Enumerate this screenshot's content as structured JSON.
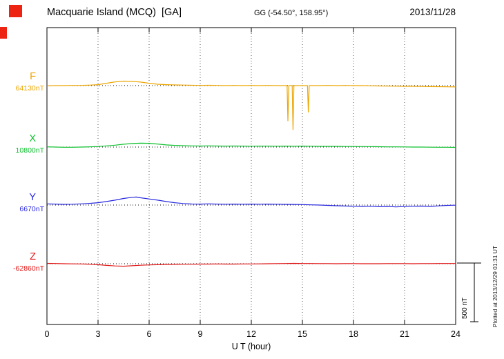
{
  "header": {
    "title": "Macquarie Island (MCQ)  [GA]",
    "coords": "GG (-54.50°, 158.95°)",
    "date": "2013/11/28"
  },
  "xaxis": {
    "label": "U T (hour)",
    "ticks": [
      "0",
      "3",
      "6",
      "9",
      "12",
      "15",
      "18",
      "21",
      "24"
    ]
  },
  "scale_bar": {
    "label": "500 nT"
  },
  "footer_note": "Plotted at 2013/12/29 01:31 UT",
  "components": [
    {
      "id": "F",
      "label": "F",
      "value_label": "64130nT"
    },
    {
      "id": "X",
      "label": "X",
      "value_label": "10800nT"
    },
    {
      "id": "Y",
      "label": "Y",
      "value_label": "6670nT"
    },
    {
      "id": "Z",
      "label": "Z",
      "value_label": "-62860nT"
    }
  ],
  "chart_data": {
    "type": "line",
    "title": "Macquarie Island (MCQ) [GA] magnetogram 2013/11/28",
    "xlabel": "U T (hour)",
    "x_range": [
      0,
      24
    ],
    "x_ticks": [
      0,
      3,
      6,
      9,
      12,
      15,
      18,
      21,
      24
    ],
    "grid": "vertical-dotted",
    "scale_bar_nT": 500,
    "offset_units": "nT relative to baseline",
    "series": [
      {
        "name": "F",
        "baseline_nT": 64130,
        "color": "#eda600",
        "points": [
          [
            0,
            -2
          ],
          [
            0.5,
            0
          ],
          [
            1,
            0
          ],
          [
            1.5,
            2
          ],
          [
            2,
            2
          ],
          [
            2.5,
            4
          ],
          [
            3,
            8
          ],
          [
            3.5,
            20
          ],
          [
            4,
            32
          ],
          [
            4.5,
            38
          ],
          [
            5,
            36
          ],
          [
            5.5,
            30
          ],
          [
            6,
            20
          ],
          [
            6.5,
            12
          ],
          [
            7,
            8
          ],
          [
            7.5,
            6
          ],
          [
            8,
            5
          ],
          [
            8.5,
            3
          ],
          [
            9,
            2
          ],
          [
            9.5,
            3
          ],
          [
            10,
            2
          ],
          [
            10.5,
            0
          ],
          [
            11,
            2
          ],
          [
            11.5,
            0
          ],
          [
            12,
            2
          ],
          [
            12.5,
            0
          ],
          [
            13,
            2
          ],
          [
            13.5,
            0
          ],
          [
            14,
            0
          ],
          [
            14.1,
            0
          ],
          [
            14.15,
            -300
          ],
          [
            14.2,
            0
          ],
          [
            14.4,
            0
          ],
          [
            14.45,
            -375
          ],
          [
            14.5,
            0
          ],
          [
            15,
            0
          ],
          [
            15.3,
            0
          ],
          [
            15.35,
            -225
          ],
          [
            15.4,
            0
          ],
          [
            16,
            0
          ],
          [
            16.5,
            2
          ],
          [
            17,
            0
          ],
          [
            17.5,
            2
          ],
          [
            18,
            0
          ],
          [
            18.5,
            0
          ],
          [
            19,
            -2
          ],
          [
            19.5,
            -3
          ],
          [
            20,
            -4
          ],
          [
            20.5,
            -5
          ],
          [
            21,
            -6
          ],
          [
            21.5,
            -6
          ],
          [
            22,
            -7
          ],
          [
            22.5,
            -8
          ],
          [
            23,
            -9
          ],
          [
            23.5,
            -10
          ],
          [
            24,
            -11
          ]
        ]
      },
      {
        "name": "X",
        "baseline_nT": 10800,
        "color": "#0cc02c",
        "points": [
          [
            0,
            2
          ],
          [
            0.5,
            0
          ],
          [
            1,
            -2
          ],
          [
            1.5,
            -2
          ],
          [
            2,
            0
          ],
          [
            2.5,
            2
          ],
          [
            3,
            5
          ],
          [
            3.5,
            10
          ],
          [
            4,
            16
          ],
          [
            4.5,
            24
          ],
          [
            5,
            30
          ],
          [
            5.5,
            33
          ],
          [
            6,
            32
          ],
          [
            6.5,
            26
          ],
          [
            7,
            18
          ],
          [
            7.5,
            14
          ],
          [
            8,
            12
          ],
          [
            8.5,
            10
          ],
          [
            9,
            9
          ],
          [
            9.5,
            10
          ],
          [
            10,
            9
          ],
          [
            10.5,
            8
          ],
          [
            11,
            9
          ],
          [
            11.5,
            8
          ],
          [
            12,
            7
          ],
          [
            12.5,
            8
          ],
          [
            13,
            8
          ],
          [
            13.5,
            7
          ],
          [
            14,
            8
          ],
          [
            14.5,
            7
          ],
          [
            15,
            8
          ],
          [
            15.5,
            7
          ],
          [
            16,
            6
          ],
          [
            16.5,
            6
          ],
          [
            17,
            6
          ],
          [
            17.5,
            5
          ],
          [
            18,
            5
          ],
          [
            18.5,
            4
          ],
          [
            19,
            4
          ],
          [
            19.5,
            3
          ],
          [
            20,
            2
          ],
          [
            20.5,
            2
          ],
          [
            21,
            1
          ],
          [
            21.5,
            0
          ],
          [
            22,
            0
          ],
          [
            22.5,
            -1
          ],
          [
            23,
            -2
          ],
          [
            23.5,
            -2
          ],
          [
            24,
            -3
          ]
        ]
      },
      {
        "name": "Y",
        "baseline_nT": 6670,
        "color": "#2727e0",
        "points": [
          [
            0,
            10
          ],
          [
            0.5,
            8
          ],
          [
            1,
            6
          ],
          [
            1.5,
            7
          ],
          [
            2,
            10
          ],
          [
            2.5,
            14
          ],
          [
            3,
            20
          ],
          [
            3.5,
            30
          ],
          [
            4,
            42
          ],
          [
            4.5,
            56
          ],
          [
            5,
            66
          ],
          [
            5.25,
            68
          ],
          [
            5.5,
            62
          ],
          [
            6,
            52
          ],
          [
            6.5,
            42
          ],
          [
            7,
            30
          ],
          [
            7.5,
            20
          ],
          [
            8,
            13
          ],
          [
            8.5,
            9
          ],
          [
            9,
            8
          ],
          [
            9.5,
            10
          ],
          [
            10,
            8
          ],
          [
            10.5,
            7
          ],
          [
            11,
            8
          ],
          [
            11.5,
            7
          ],
          [
            12,
            8
          ],
          [
            12.5,
            7
          ],
          [
            13,
            8
          ],
          [
            13.5,
            7
          ],
          [
            14,
            6
          ],
          [
            14.5,
            5
          ],
          [
            15,
            4
          ],
          [
            15.5,
            2
          ],
          [
            16,
            0
          ],
          [
            16.5,
            -3
          ],
          [
            17,
            -6
          ],
          [
            17.5,
            -8
          ],
          [
            18,
            -10
          ],
          [
            18.5,
            -12
          ],
          [
            19,
            -10
          ],
          [
            19.5,
            -14
          ],
          [
            20,
            -12
          ],
          [
            20.5,
            -16
          ],
          [
            21,
            -12
          ],
          [
            21.5,
            -10
          ],
          [
            22,
            -9
          ],
          [
            22.5,
            -12
          ],
          [
            23,
            -7
          ],
          [
            23.5,
            -3
          ],
          [
            24,
            -1
          ]
        ]
      },
      {
        "name": "Z",
        "baseline_nT": -62860,
        "color": "#e01414",
        "points": [
          [
            0,
            3
          ],
          [
            0.5,
            2
          ],
          [
            1,
            0
          ],
          [
            1.5,
            -1
          ],
          [
            2,
            -2
          ],
          [
            2.5,
            -4
          ],
          [
            3,
            -8
          ],
          [
            3.5,
            -14
          ],
          [
            4,
            -19
          ],
          [
            4.5,
            -21
          ],
          [
            5,
            -17
          ],
          [
            5.5,
            -13
          ],
          [
            6,
            -10
          ],
          [
            6.5,
            -8
          ],
          [
            7,
            -6
          ],
          [
            7.5,
            -5
          ],
          [
            8,
            -4
          ],
          [
            8.5,
            -4
          ],
          [
            9,
            -3
          ],
          [
            9.5,
            -3
          ],
          [
            10,
            -2
          ],
          [
            10.5,
            -3
          ],
          [
            11,
            -3
          ],
          [
            11.5,
            -2
          ],
          [
            12,
            -2
          ],
          [
            12.5,
            -1
          ],
          [
            13,
            0
          ],
          [
            13.5,
            1
          ],
          [
            14,
            2
          ],
          [
            14.5,
            3
          ],
          [
            15,
            2
          ],
          [
            15.5,
            2
          ],
          [
            16,
            1
          ],
          [
            16.5,
            1
          ],
          [
            17,
            0
          ],
          [
            17.5,
            1
          ],
          [
            18,
            1
          ],
          [
            18.5,
            0
          ],
          [
            19,
            0
          ],
          [
            19.5,
            0
          ],
          [
            20,
            1
          ],
          [
            20.5,
            1
          ],
          [
            21,
            1
          ],
          [
            21.5,
            0
          ],
          [
            22,
            1
          ],
          [
            22.5,
            1
          ],
          [
            23,
            2
          ],
          [
            23.5,
            2
          ],
          [
            24,
            2
          ]
        ]
      }
    ]
  }
}
